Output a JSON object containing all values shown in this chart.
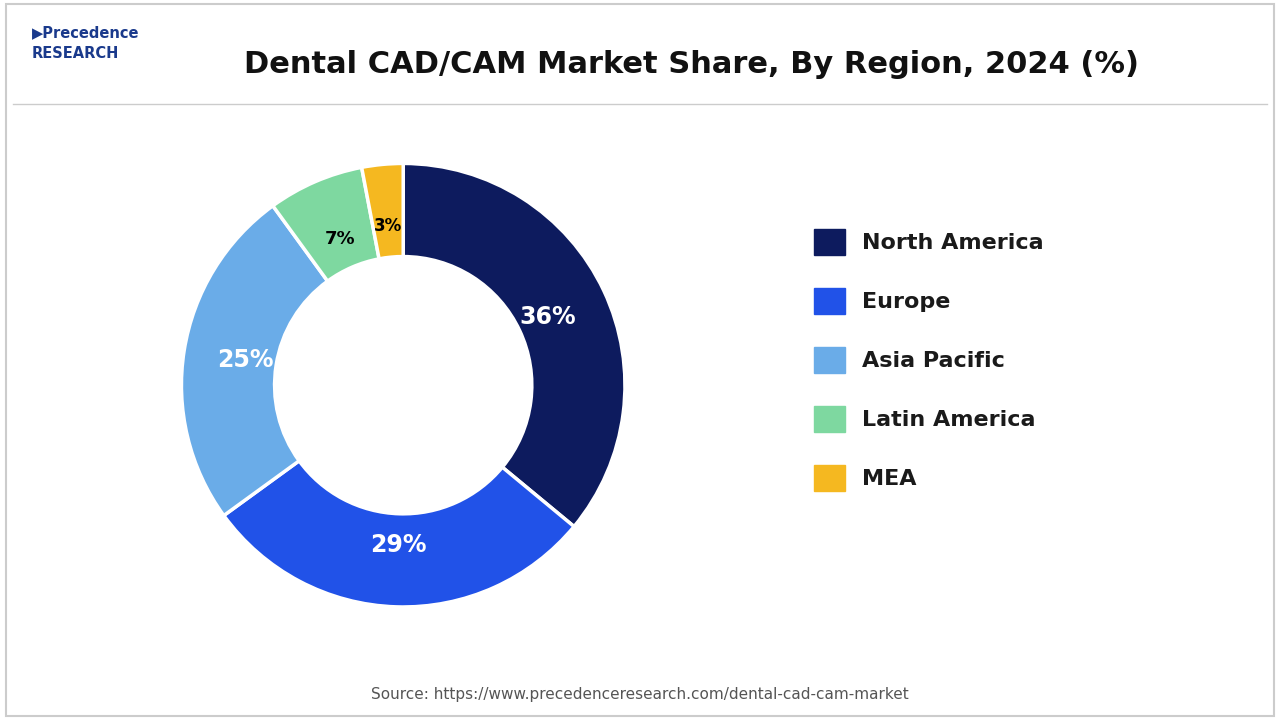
{
  "title": "Dental CAD/CAM Market Share, By Region, 2024 (%)",
  "source_text": "Source: https://www.precedenceresearch.com/dental-cad-cam-market",
  "labels": [
    "North America",
    "Europe",
    "Asia Pacific",
    "Latin America",
    "MEA"
  ],
  "values": [
    36,
    29,
    25,
    7,
    3
  ],
  "colors": [
    "#0d1b5e",
    "#2152e8",
    "#6aace8",
    "#7ed8a0",
    "#f5b820"
  ],
  "text_colors": [
    "white",
    "white",
    "white",
    "black",
    "black"
  ],
  "background_color": "#ffffff",
  "border_color": "#cccccc",
  "title_fontsize": 22,
  "legend_fontsize": 16,
  "label_fontsize": 17
}
